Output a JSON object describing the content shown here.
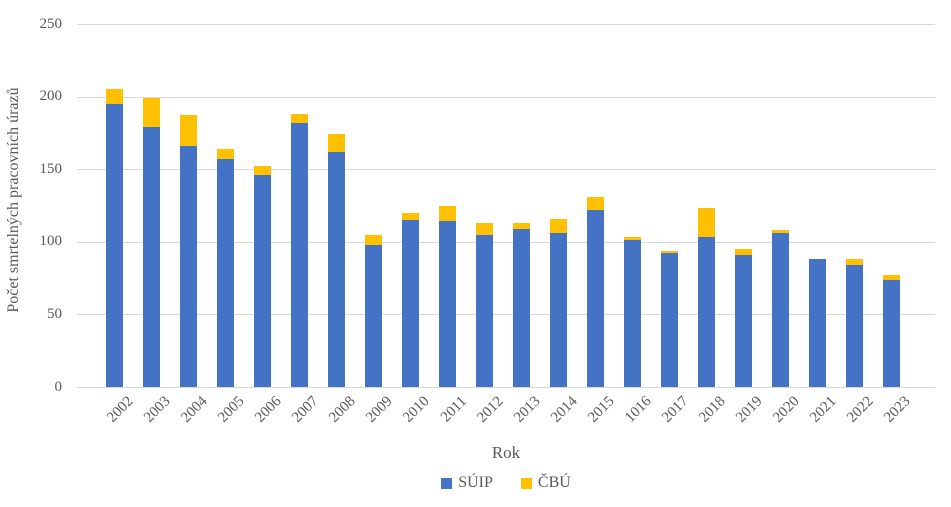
{
  "chart_data": {
    "type": "bar",
    "stacked": true,
    "title": "",
    "xlabel": "Rok",
    "ylabel": "Počet smrtelných pracovních úrazů",
    "categories": [
      "2002",
      "2003",
      "2004",
      "2005",
      "2006",
      "2007",
      "2008",
      "2009",
      "2010",
      "2011",
      "2012",
      "2013",
      "2014",
      "2015",
      "1016",
      "2017",
      "2018",
      "2019",
      "2020",
      "2021",
      "2022",
      "2023"
    ],
    "series": [
      {
        "name": "SÚIP",
        "color": "#4472C4",
        "values": [
          195,
          179,
          166,
          157,
          146,
          182,
          162,
          98,
          115,
          114,
          105,
          109,
          106,
          122,
          101,
          92,
          103,
          91,
          106,
          88,
          84,
          74
        ]
      },
      {
        "name": "ČBÚ",
        "color": "#FFC000",
        "values": [
          10,
          20,
          21,
          7,
          6,
          6,
          12,
          7,
          5,
          11,
          8,
          4,
          10,
          9,
          2,
          2,
          20,
          4,
          2,
          0,
          4,
          3
        ]
      }
    ],
    "totals": [
      205,
      199,
      187,
      164,
      152,
      188,
      174,
      105,
      120,
      125,
      113,
      113,
      116,
      131,
      103,
      94,
      123,
      95,
      108,
      88,
      88,
      77
    ],
    "ylim": [
      0,
      250
    ],
    "yticks": [
      0,
      50,
      100,
      150,
      200,
      250
    ],
    "grid": true,
    "legend_position": "bottom"
  },
  "colors": {
    "suip_blue": "#4472C4",
    "cbu_yellow": "#FFC000",
    "gridline": "#D9D9D9",
    "axis_text": "#595959"
  }
}
